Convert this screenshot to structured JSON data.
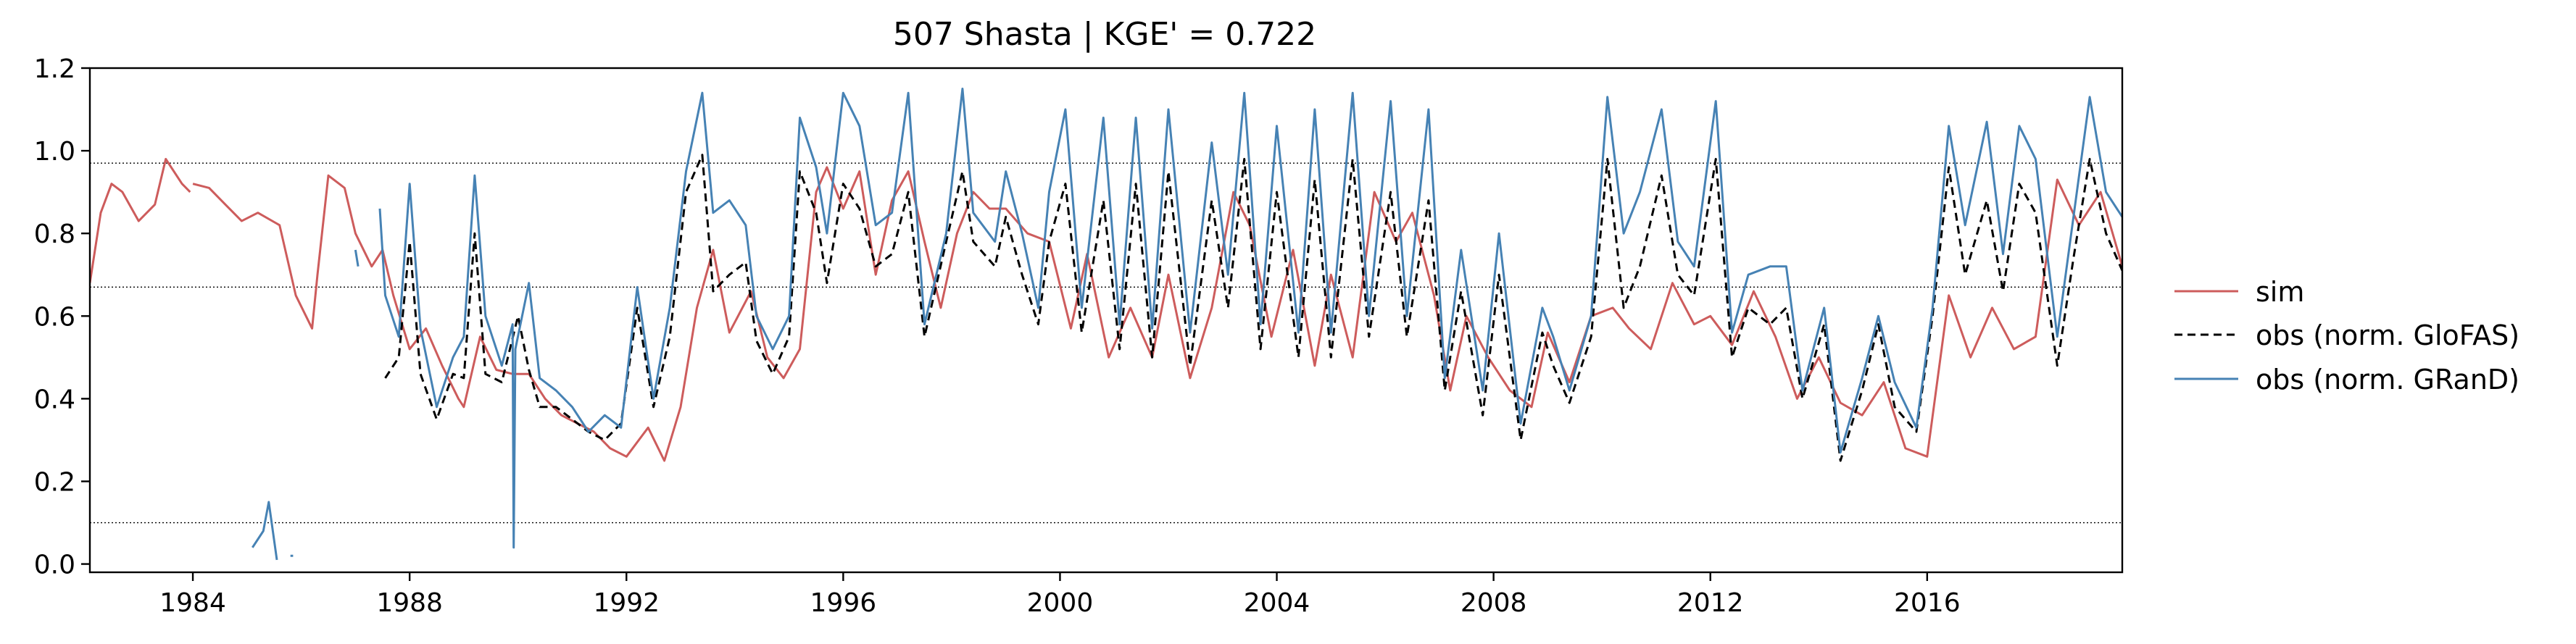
{
  "chart_data": {
    "type": "line",
    "title": "507  Shasta | KGE' = 0.722",
    "xlabel": "",
    "ylabel": "",
    "xlim": [
      1982.1,
      2019.6
    ],
    "ylim": [
      -0.02,
      1.2
    ],
    "xticks": [
      1984,
      1988,
      1992,
      1996,
      2000,
      2004,
      2008,
      2012,
      2016
    ],
    "yticks": [
      0.0,
      0.2,
      0.4,
      0.6,
      0.8,
      1.0,
      1.2
    ],
    "ytick_labels": [
      "0.0",
      "0.2",
      "0.4",
      "0.6",
      "0.8",
      "1.0",
      "1.2"
    ],
    "hlines": [
      0.97,
      0.67,
      0.1
    ],
    "grid": false,
    "legend": {
      "placement": "outside-right",
      "entries": [
        "sim",
        "obs (norm. GloFAS)",
        "obs (norm. GRanD)"
      ]
    },
    "series": [
      {
        "name": "sim",
        "color": "#cd5c5c",
        "style": "solid",
        "x": [
          1982.1,
          1982.3,
          1982.5,
          1982.7,
          1983.0,
          1983.3,
          1983.5,
          1983.8,
          1983.95,
          null,
          1984.0,
          1984.3,
          1984.6,
          1984.9,
          1985.2,
          1985.6,
          1985.9,
          1986.2,
          1986.3,
          1986.5,
          1986.8,
          1987.0,
          1987.3,
          1987.5,
          1987.7,
          1988.0,
          1988.3,
          1988.6,
          1988.9,
          1989.0,
          1989.3,
          1989.6,
          1989.9,
          1990.2,
          1990.5,
          1990.8,
          1991.1,
          1991.4,
          1991.7,
          1992.0,
          1992.4,
          1992.7,
          1993.0,
          1993.3,
          1993.6,
          1993.9,
          1994.3,
          1994.6,
          1994.9,
          1995.2,
          1995.5,
          1995.7,
          1996.0,
          1996.3,
          1996.6,
          1996.9,
          1997.2,
          1997.5,
          1997.8,
          1998.1,
          1998.4,
          1998.7,
          1999.0,
          1999.4,
          1999.8,
          2000.2,
          2000.5,
          2000.9,
          2001.3,
          2001.7,
          2002.0,
          2002.4,
          2002.8,
          2003.2,
          2003.5,
          2003.9,
          2004.3,
          2004.7,
          2005.0,
          2005.4,
          2005.8,
          2006.2,
          2006.5,
          2006.9,
          2007.2,
          2007.5,
          2007.9,
          2008.3,
          2008.7,
          2009.0,
          2009.4,
          2009.8,
          2010.2,
          2010.5,
          2010.9,
          2011.3,
          2011.7,
          2012.0,
          2012.4,
          2012.8,
          2013.2,
          2013.6,
          2014.0,
          2014.4,
          2014.8,
          2015.2,
          2015.6,
          2016.0,
          2016.4,
          2016.8,
          2017.2,
          2017.6,
          2018.0,
          2018.4,
          2018.8,
          2019.2,
          2019.6
        ],
        "y": [
          0.68,
          0.85,
          0.92,
          0.9,
          0.83,
          0.87,
          0.98,
          0.92,
          0.9,
          null,
          0.92,
          0.91,
          0.87,
          0.83,
          0.85,
          0.82,
          0.65,
          0.57,
          0.7,
          0.94,
          0.91,
          0.8,
          0.72,
          0.76,
          0.65,
          0.52,
          0.57,
          0.48,
          0.4,
          0.38,
          0.55,
          0.47,
          0.46,
          0.46,
          0.4,
          0.36,
          0.34,
          0.32,
          0.28,
          0.26,
          0.33,
          0.25,
          0.38,
          0.62,
          0.76,
          0.56,
          0.66,
          0.5,
          0.45,
          0.52,
          0.9,
          0.96,
          0.86,
          0.95,
          0.7,
          0.88,
          0.95,
          0.78,
          0.62,
          0.8,
          0.9,
          0.86,
          0.86,
          0.8,
          0.78,
          0.57,
          0.75,
          0.5,
          0.62,
          0.5,
          0.7,
          0.45,
          0.62,
          0.9,
          0.82,
          0.55,
          0.76,
          0.48,
          0.7,
          0.5,
          0.9,
          0.78,
          0.85,
          0.65,
          0.42,
          0.6,
          0.5,
          0.42,
          0.38,
          0.56,
          0.44,
          0.6,
          0.62,
          0.57,
          0.52,
          0.68,
          0.58,
          0.6,
          0.53,
          0.66,
          0.55,
          0.4,
          0.5,
          0.39,
          0.36,
          0.44,
          0.28,
          0.26,
          0.65,
          0.5,
          0.62,
          0.52,
          0.55,
          0.93,
          0.82,
          0.9,
          0.72
        ]
      },
      {
        "name": "obs (norm. GloFAS)",
        "color": "#000000",
        "style": "dashed",
        "x": [
          1987.55,
          1987.8,
          1988.0,
          1988.2,
          1988.5,
          1988.8,
          1989.0,
          1989.2,
          1989.4,
          1989.7,
          1990.0,
          1990.2,
          1990.4,
          1990.7,
          1991.0,
          1991.3,
          1991.6,
          1991.9,
          1992.2,
          1992.5,
          1992.8,
          1993.1,
          1993.4,
          1993.6,
          1993.9,
          1994.2,
          1994.4,
          1994.7,
          1995.0,
          1995.2,
          1995.5,
          1995.7,
          1996.0,
          1996.3,
          1996.6,
          1996.9,
          1997.2,
          1997.5,
          1997.9,
          1998.2,
          1998.4,
          1998.8,
          1999.0,
          1999.3,
          1999.6,
          1999.8,
          2000.1,
          2000.4,
          2000.8,
          2001.1,
          2001.4,
          2001.7,
          2002.0,
          2002.4,
          2002.8,
          2003.1,
          2003.4,
          2003.7,
          2004.0,
          2004.4,
          2004.7,
          2005.0,
          2005.4,
          2005.7,
          2006.1,
          2006.4,
          2006.8,
          2007.1,
          2007.4,
          2007.8,
          2008.1,
          2008.5,
          2008.9,
          2009.1,
          2009.4,
          2009.8,
          2010.1,
          2010.4,
          2010.7,
          2011.1,
          2011.4,
          2011.7,
          2012.1,
          2012.4,
          2012.7,
          2013.1,
          2013.4,
          2013.7,
          2014.1,
          2014.4,
          2014.8,
          2015.1,
          2015.4,
          2015.8,
          2016.1,
          2016.4,
          2016.7,
          2017.1,
          2017.4,
          2017.7,
          2018.0,
          2018.4,
          2018.7,
          2019.0,
          2019.3,
          2019.6
        ],
        "y": [
          0.45,
          0.5,
          0.78,
          0.46,
          0.35,
          0.46,
          0.45,
          0.8,
          0.46,
          0.44,
          0.6,
          0.47,
          0.38,
          0.38,
          0.35,
          0.32,
          0.3,
          0.34,
          0.62,
          0.38,
          0.55,
          0.9,
          0.99,
          0.66,
          0.7,
          0.73,
          0.54,
          0.46,
          0.55,
          0.95,
          0.85,
          0.68,
          0.92,
          0.86,
          0.72,
          0.75,
          0.9,
          0.55,
          0.78,
          0.95,
          0.78,
          0.72,
          0.84,
          0.7,
          0.58,
          0.78,
          0.92,
          0.56,
          0.88,
          0.52,
          0.92,
          0.5,
          0.95,
          0.48,
          0.88,
          0.62,
          0.98,
          0.52,
          0.9,
          0.5,
          0.93,
          0.5,
          0.98,
          0.55,
          0.9,
          0.55,
          0.88,
          0.42,
          0.66,
          0.36,
          0.7,
          0.3,
          0.56,
          0.48,
          0.39,
          0.55,
          0.98,
          0.62,
          0.72,
          0.94,
          0.7,
          0.65,
          0.98,
          0.5,
          0.62,
          0.58,
          0.62,
          0.4,
          0.58,
          0.25,
          0.42,
          0.58,
          0.38,
          0.32,
          0.6,
          0.96,
          0.7,
          0.88,
          0.66,
          0.92,
          0.85,
          0.48,
          0.74,
          0.98,
          0.8,
          0.71
        ]
      },
      {
        "name": "obs (norm. GRanD)",
        "color": "#4682b4",
        "style": "solid",
        "x": [
          1985.1,
          1985.3,
          1985.4,
          1985.55,
          null,
          1985.8,
          1985.85,
          null,
          1987.0,
          1987.05,
          null,
          1987.45,
          1987.55,
          1987.8,
          1988.0,
          1988.2,
          1988.5,
          1988.8,
          1989.0,
          1989.2,
          1989.4,
          1989.7,
          1989.9,
          1989.92,
          1989.95,
          1990.2,
          1990.4,
          1990.7,
          1991.0,
          1991.3,
          1991.6,
          1991.9,
          1992.2,
          1992.5,
          1992.8,
          1993.1,
          1993.4,
          1993.6,
          1993.9,
          1994.2,
          1994.4,
          1994.7,
          1995.0,
          1995.2,
          1995.5,
          1995.7,
          1996.0,
          1996.3,
          1996.6,
          1996.9,
          1997.2,
          1997.5,
          1997.9,
          1998.2,
          1998.4,
          1998.8,
          1999.0,
          1999.3,
          1999.6,
          1999.8,
          2000.1,
          2000.4,
          2000.8,
          2001.1,
          2001.4,
          2001.7,
          2002.0,
          2002.4,
          2002.8,
          2003.1,
          2003.4,
          2003.7,
          2004.0,
          2004.4,
          2004.7,
          2005.0,
          2005.4,
          2005.7,
          2006.1,
          2006.4,
          2006.8,
          2007.1,
          2007.4,
          2007.8,
          2008.1,
          2008.5,
          2008.9,
          2009.1,
          2009.4,
          2009.8,
          2010.1,
          2010.4,
          2010.7,
          2011.1,
          2011.4,
          2011.7,
          2012.1,
          2012.4,
          2012.7,
          2013.1,
          2013.4,
          2013.7,
          2014.1,
          2014.4,
          2014.8,
          2015.1,
          2015.4,
          2015.8,
          2016.1,
          2016.4,
          2016.7,
          2017.1,
          2017.4,
          2017.7,
          2018.0,
          2018.4,
          2018.7,
          2019.0,
          2019.3,
          2019.6
        ],
        "y": [
          0.04,
          0.08,
          0.15,
          0.01,
          null,
          0.02,
          0.02,
          null,
          0.76,
          0.72,
          null,
          0.86,
          0.65,
          0.55,
          0.92,
          0.57,
          0.38,
          0.5,
          0.55,
          0.94,
          0.6,
          0.48,
          0.58,
          0.04,
          0.52,
          0.68,
          0.45,
          0.42,
          0.38,
          0.32,
          0.36,
          0.33,
          0.67,
          0.4,
          0.62,
          0.95,
          1.14,
          0.85,
          0.88,
          0.82,
          0.6,
          0.52,
          0.6,
          1.08,
          0.96,
          0.8,
          1.14,
          1.06,
          0.82,
          0.85,
          1.14,
          0.58,
          0.8,
          1.15,
          0.85,
          0.78,
          0.95,
          0.8,
          0.62,
          0.9,
          1.1,
          0.62,
          1.08,
          0.58,
          1.08,
          0.57,
          1.1,
          0.56,
          1.02,
          0.7,
          1.14,
          0.58,
          1.06,
          0.56,
          1.1,
          0.56,
          1.14,
          0.6,
          1.12,
          0.6,
          1.1,
          0.45,
          0.76,
          0.42,
          0.8,
          0.34,
          0.62,
          0.55,
          0.42,
          0.6,
          1.13,
          0.8,
          0.9,
          1.1,
          0.78,
          0.72,
          1.12,
          0.56,
          0.7,
          0.72,
          0.72,
          0.42,
          0.62,
          0.27,
          0.45,
          0.6,
          0.44,
          0.33,
          0.62,
          1.06,
          0.82,
          1.07,
          0.75,
          1.06,
          0.98,
          0.55,
          0.84,
          1.13,
          0.9,
          0.84
        ]
      }
    ]
  }
}
